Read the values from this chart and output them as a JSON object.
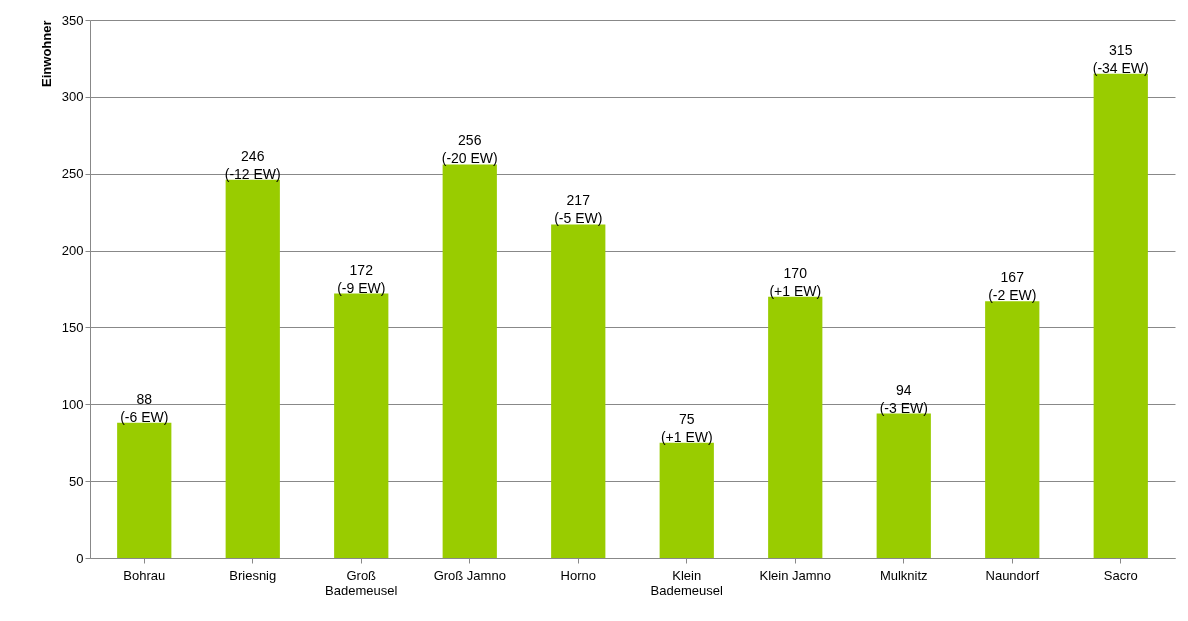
{
  "chart_data": {
    "type": "bar",
    "ylabel": "Einwohner",
    "categories": [
      "Bohrau",
      "Briesnig",
      "Groß\nBademeusel",
      "Groß Jamno",
      "Horno",
      "Klein\nBademeusel",
      "Klein Jamno",
      "Mulknitz",
      "Naundorf",
      "Sacro"
    ],
    "values": [
      88,
      246,
      172,
      256,
      217,
      75,
      170,
      94,
      167,
      315
    ],
    "value_labels": [
      "88\n(-6 EW)",
      "246\n(-12 EW)",
      "172\n(-9 EW)",
      "256\n(-20 EW)",
      "217\n(-5 EW)",
      "75\n(+1 EW)",
      "170\n(+1 EW)",
      "94\n(-3 EW)",
      "167\n(-2 EW)",
      "315\n(-34 EW)"
    ],
    "color": "#99cc00",
    "ylim": [
      0,
      350
    ],
    "yticks": [
      0,
      50,
      100,
      150,
      200,
      250,
      300,
      350
    ],
    "grid": "y"
  }
}
